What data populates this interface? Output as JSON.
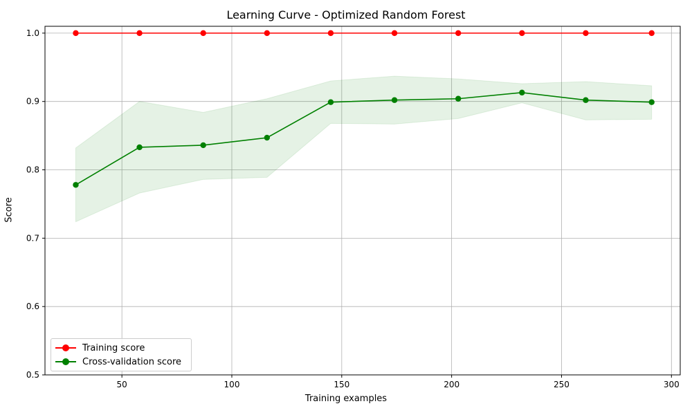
{
  "chart_data": {
    "type": "line",
    "title": "Learning Curve - Optimized Random Forest",
    "xlabel": "Training examples",
    "ylabel": "Score",
    "xlim": [
      15,
      304
    ],
    "ylim": [
      0.5,
      1.01
    ],
    "x_ticks": [
      50,
      100,
      150,
      200,
      250,
      300
    ],
    "y_ticks": [
      0.5,
      0.6,
      0.7,
      0.8,
      0.9,
      1.0
    ],
    "x_tick_labels": [
      "50",
      "100",
      "150",
      "200",
      "250",
      "300"
    ],
    "y_tick_labels": [
      "0.5",
      "0.6",
      "0.7",
      "0.8",
      "0.9",
      "1.0"
    ],
    "grid": true,
    "legend_position": "lower-left",
    "x": [
      29,
      58,
      87,
      116,
      145,
      174,
      203,
      232,
      261,
      291
    ],
    "series": [
      {
        "name": "Training score",
        "color": "#ff0000",
        "values": [
          1.0,
          1.0,
          1.0,
          1.0,
          1.0,
          1.0,
          1.0,
          1.0,
          1.0,
          1.0
        ],
        "band_lower": [
          1.0,
          1.0,
          1.0,
          1.0,
          1.0,
          1.0,
          1.0,
          1.0,
          1.0,
          1.0
        ],
        "band_upper": [
          1.0,
          1.0,
          1.0,
          1.0,
          1.0,
          1.0,
          1.0,
          1.0,
          1.0,
          1.0
        ]
      },
      {
        "name": "Cross-validation score",
        "color": "#008000",
        "values": [
          0.778,
          0.833,
          0.836,
          0.847,
          0.899,
          0.902,
          0.904,
          0.913,
          0.902,
          0.899
        ],
        "band_lower": [
          0.724,
          0.766,
          0.786,
          0.789,
          0.868,
          0.867,
          0.875,
          0.898,
          0.873,
          0.874
        ],
        "band_upper": [
          0.832,
          0.9,
          0.884,
          0.904,
          0.93,
          0.937,
          0.933,
          0.926,
          0.929,
          0.923
        ]
      }
    ]
  }
}
